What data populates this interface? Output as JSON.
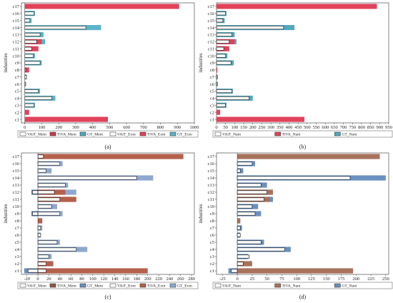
{
  "chart_data": [
    {
      "panel": "(a)",
      "type": "bar",
      "orientation": "horizontal",
      "xlabel": "kilotonnes",
      "ylabel": "industries",
      "xlim": [
        -20,
        1000
      ],
      "xticks": [
        0,
        100,
        200,
        300,
        400,
        500,
        600,
        700,
        800,
        900,
        1000
      ],
      "categories": [
        "c1",
        "c2",
        "c3",
        "c4",
        "c5",
        "c6",
        "c7",
        "c8",
        "c9",
        "c10",
        "c11",
        "c12",
        "c13",
        "c14",
        "c15",
        "c16",
        "c17"
      ],
      "series": [
        {
          "name": "GT_Mem",
          "color": "#4fa8be",
          "values": [
            0,
            0,
            0,
            0,
            0,
            0,
            0,
            0,
            0,
            0,
            0,
            0,
            0,
            0,
            0,
            0,
            0
          ]
        },
        {
          "name": "TiVA_Mem",
          "color": "#c83a4e",
          "values": [
            0,
            0,
            0,
            0,
            0,
            0,
            0,
            0,
            0,
            0,
            0,
            0,
            0,
            0,
            0,
            0,
            0
          ]
        },
        {
          "name": "VAiT_Mem",
          "color": "#ffffff",
          "values": [
            0,
            0,
            0,
            0,
            0,
            0,
            0,
            0,
            0,
            0,
            0,
            0,
            0,
            0,
            0,
            0,
            0
          ]
        },
        {
          "name": "GT_Exm",
          "color": "#5bb4c8",
          "values": [
            0,
            0,
            60,
            180,
            90,
            5,
            10,
            5,
            100,
            60,
            40,
            120,
            110,
            450,
            40,
            60,
            0
          ]
        },
        {
          "name": "TiVA_Exm",
          "color": "#e2425a",
          "values": [
            490,
            25,
            0,
            0,
            0,
            0,
            0,
            25,
            0,
            0,
            80,
            100,
            0,
            0,
            0,
            0,
            910
          ]
        },
        {
          "name": "VAiT_Exm",
          "color": "#ffffff",
          "values": [
            0,
            0,
            55,
            160,
            80,
            5,
            10,
            5,
            90,
            50,
            40,
            70,
            90,
            360,
            30,
            55,
            0
          ]
        }
      ],
      "legend": [
        "VAiT_Mem",
        "TiVA_Mem",
        "GT_Mem",
        "VAiT_Exm",
        "TiVA_Exm",
        "GT_Exm"
      ],
      "legend_position": "bottom"
    },
    {
      "panel": "(b)",
      "type": "bar",
      "orientation": "horizontal",
      "xlabel": "kilotonnes",
      "ylabel": "industries",
      "xlim": [
        0,
        950
      ],
      "xticks": [
        0,
        50,
        100,
        150,
        200,
        250,
        300,
        350,
        400,
        450,
        500,
        550,
        600,
        650,
        700,
        750,
        800,
        850,
        900,
        950
      ],
      "categories": [
        "c1",
        "c2",
        "c3",
        "c4",
        "c5",
        "c6",
        "c7",
        "c8",
        "c9",
        "c10",
        "c11",
        "c12",
        "c13",
        "c14",
        "c15",
        "c16",
        "c17"
      ],
      "series": [
        {
          "name": "GT_Nam",
          "color": "#4fa8be",
          "values": [
            0,
            0,
            55,
            200,
            90,
            5,
            5,
            0,
            95,
            60,
            40,
            110,
            100,
            430,
            45,
            55,
            0
          ]
        },
        {
          "name": "TiVA_Nam",
          "color": "#e2425a",
          "values": [
            485,
            20,
            0,
            0,
            0,
            0,
            0,
            5,
            0,
            0,
            70,
            100,
            0,
            0,
            0,
            0,
            885
          ]
        },
        {
          "name": "VAiT_Nam",
          "color": "#ffffff",
          "values": [
            0,
            0,
            50,
            180,
            85,
            5,
            5,
            0,
            80,
            50,
            40,
            70,
            85,
            370,
            35,
            50,
            0
          ]
        }
      ],
      "legend": [
        "VAiT_Nam",
        "TiVA_Nam",
        "GT_Nam"
      ],
      "legend_position": "bottom"
    },
    {
      "panel": "(c)",
      "type": "bar",
      "orientation": "horizontal",
      "xlabel": "kilotonnes",
      "ylabel": "industries",
      "xlim": [
        -30,
        285
      ],
      "xticks": [
        -20,
        0,
        20,
        40,
        60,
        80,
        100,
        120,
        140,
        160,
        180,
        200,
        220,
        240,
        260,
        280
      ],
      "categories": [
        "c1",
        "c2",
        "c3",
        "c4",
        "c5",
        "c6",
        "c7",
        "c8",
        "c9",
        "c10",
        "c11",
        "c12",
        "c13",
        "c14",
        "c15",
        "c16",
        "c17"
      ],
      "series": [
        {
          "name": "GT_Mem",
          "color": "#6a8fc0",
          "values": [
            -25,
            0,
            0,
            0,
            0,
            0,
            0,
            0,
            -12,
            0,
            0,
            -12,
            0,
            0,
            0,
            0,
            0
          ]
        },
        {
          "name": "TiVA_Mem",
          "color": "#8e5a4a",
          "values": [
            0,
            0,
            0,
            0,
            0,
            0,
            0,
            0,
            0,
            0,
            0,
            0,
            0,
            0,
            0,
            0,
            0
          ]
        },
        {
          "name": "VAiT_Mem",
          "color": "#ffffff",
          "values": [
            -18,
            0,
            0,
            0,
            0,
            0,
            0,
            0,
            -10,
            0,
            0,
            -10,
            0,
            0,
            0,
            0,
            0
          ]
        },
        {
          "name": "GT_Exm",
          "color": "#8fa8d0",
          "values": [
            0,
            10,
            25,
            90,
            40,
            5,
            8,
            5,
            45,
            35,
            60,
            70,
            55,
            210,
            25,
            45,
            0
          ]
        },
        {
          "name": "TiVA_Exm",
          "color": "#b5604c",
          "values": [
            200,
            28,
            0,
            0,
            0,
            0,
            0,
            8,
            0,
            0,
            70,
            50,
            0,
            0,
            0,
            0,
            265
          ]
        },
        {
          "name": "VAiT_Exm",
          "color": "#ffffff",
          "values": [
            15,
            15,
            20,
            70,
            35,
            5,
            5,
            0,
            40,
            25,
            40,
            30,
            50,
            180,
            15,
            40,
            10
          ]
        }
      ],
      "legend": [
        "VAiT_Mem",
        "TiVA_Mem",
        "GT_Mem",
        "VAiT_Exm",
        "TiVA_Exm",
        "GT_Exm"
      ],
      "legend_position": "bottom"
    },
    {
      "panel": "(d)",
      "type": "bar",
      "orientation": "horizontal",
      "xlabel": "kilotonnes",
      "ylabel": "industries",
      "xlim": [
        -35,
        255
      ],
      "xticks": [
        -25,
        0,
        25,
        50,
        75,
        100,
        125,
        150,
        175,
        200,
        225,
        250
      ],
      "categories": [
        "c1",
        "c2",
        "c3",
        "c4",
        "c5",
        "c6",
        "c7",
        "c8",
        "c9",
        "c10",
        "c11",
        "c12",
        "c13",
        "c14",
        "c15",
        "c16",
        "c17"
      ],
      "series": [
        {
          "name": "GT_Nam",
          "color": "#6a8fc0",
          "values": [
            -15,
            0,
            18,
            90,
            45,
            5,
            8,
            5,
            40,
            35,
            60,
            60,
            50,
            250,
            10,
            30,
            0
          ]
        },
        {
          "name": "TiVA_Nam",
          "color": "#a8725c",
          "values": [
            195,
            25,
            0,
            0,
            0,
            0,
            0,
            5,
            0,
            0,
            55,
            60,
            0,
            0,
            0,
            0,
            240
          ]
        },
        {
          "name": "VAiT_Nam",
          "color": "#ffffff",
          "values": [
            -10,
            10,
            20,
            80,
            40,
            5,
            5,
            0,
            30,
            25,
            45,
            50,
            40,
            190,
            5,
            25,
            0
          ]
        }
      ],
      "legend": [
        "VAiT_Nam",
        "TiVA_Nam",
        "GT_Nam"
      ],
      "legend_position": "bottom"
    }
  ]
}
